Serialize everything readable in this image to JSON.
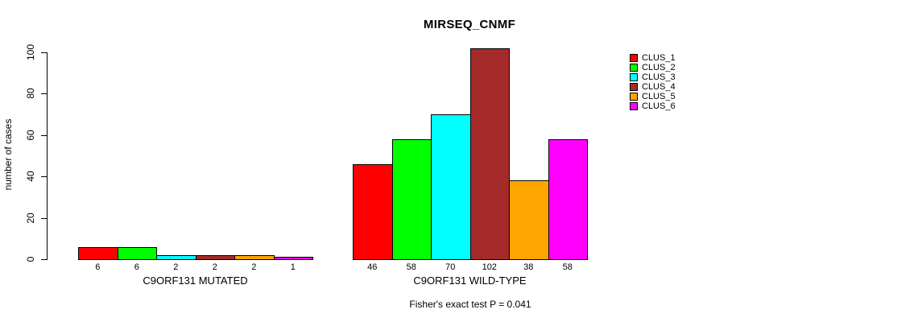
{
  "title": "MIRSEQ_CNMF",
  "chart_data": {
    "type": "bar",
    "title": "MIRSEQ_CNMF",
    "xlabel": "",
    "ylabel": "number of cases",
    "ylim": [
      0,
      100
    ],
    "yticks": [
      0,
      20,
      40,
      60,
      80,
      100
    ],
    "grid": false,
    "legend_position": "right",
    "legend": [
      "CLUS_1",
      "CLUS_2",
      "CLUS_3",
      "CLUS_4",
      "CLUS_5",
      "CLUS_6"
    ],
    "colors": [
      "#FF0000",
      "#00FF00",
      "#00FFFF",
      "#A52A2A",
      "#FFA500",
      "#FF00FF"
    ],
    "groups": [
      {
        "label": "C9ORF131 MUTATED",
        "values": [
          6,
          6,
          2,
          2,
          2,
          1
        ]
      },
      {
        "label": "C9ORF131 WILD-TYPE",
        "values": [
          46,
          58,
          70,
          102,
          38,
          58
        ]
      }
    ],
    "annotation": "Fisher's exact test P = 0.041"
  }
}
